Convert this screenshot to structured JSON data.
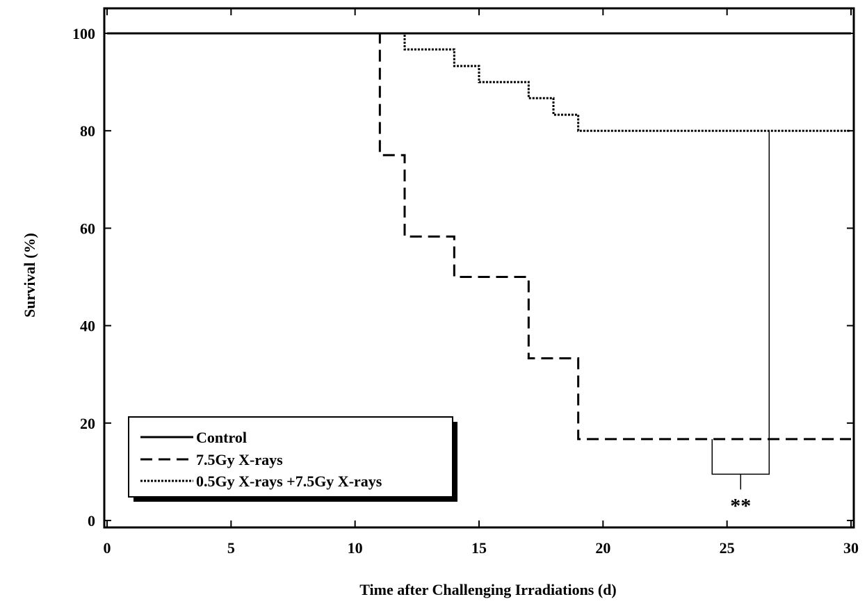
{
  "chart_data": {
    "type": "line",
    "step": true,
    "title": "",
    "xlabel": "Time after Challenging Irradiations (d)",
    "ylabel": "Survival (%)",
    "xlim": [
      0,
      30
    ],
    "ylim": [
      0,
      100
    ],
    "xticks": [
      0,
      5,
      10,
      15,
      20,
      25,
      30
    ],
    "yticks": [
      0,
      20,
      40,
      60,
      80,
      100
    ],
    "grid": false,
    "legend_position": "bottom-left",
    "series": [
      {
        "name": "Control",
        "style": "solid",
        "x": [
          0,
          30
        ],
        "y": [
          100,
          100
        ]
      },
      {
        "name": "7.5Gy X-rays",
        "style": "dashed",
        "x": [
          0,
          11,
          12,
          14,
          17,
          19,
          30
        ],
        "y": [
          100,
          75,
          58.3,
          50,
          33.3,
          16.7,
          16.7
        ]
      },
      {
        "name": "0.5Gy X-rays +7.5Gy X-rays",
        "style": "dotted",
        "x": [
          0,
          12,
          14,
          15,
          17,
          18,
          19,
          30
        ],
        "y": [
          100,
          96.7,
          93.3,
          90,
          86.7,
          83.3,
          80,
          80
        ]
      }
    ],
    "annotations": [
      {
        "text": "**",
        "between": [
          "7.5Gy X-rays",
          "0.5Gy X-rays +7.5Gy X-rays"
        ],
        "x_range": [
          24.4,
          26.7
        ]
      }
    ]
  }
}
